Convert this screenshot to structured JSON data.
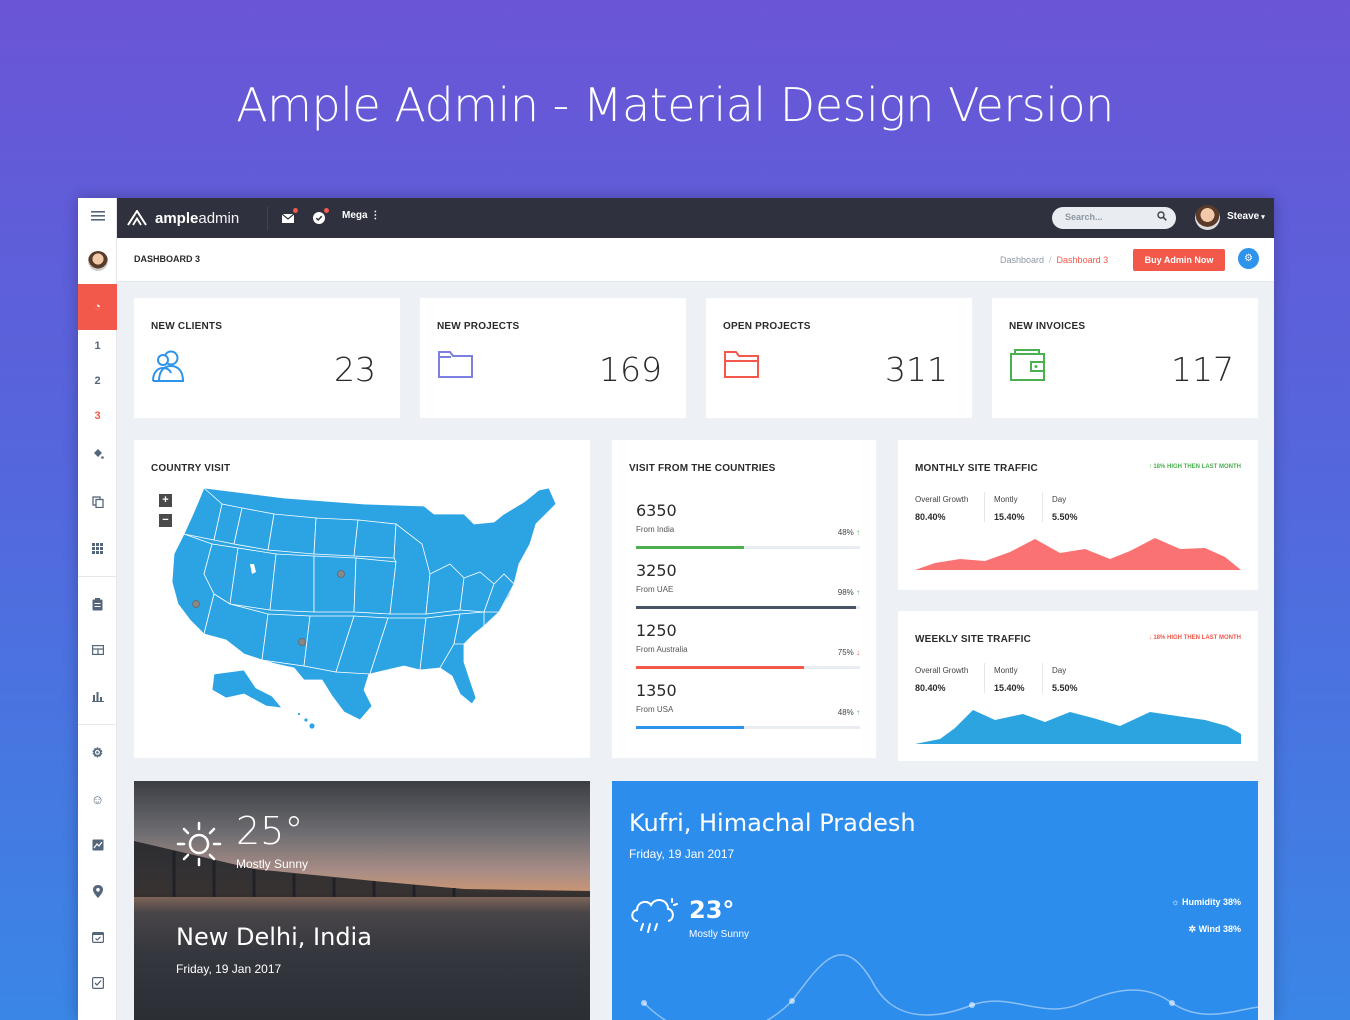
{
  "hero_title": "Ample Admin - Material Design Version",
  "app": {
    "logo_bold": "ample",
    "logo_light": "admin",
    "mega_label": "Mega",
    "search_placeholder": "Search...",
    "user_name": "Steave"
  },
  "sidebar": {
    "numbers": [
      "1",
      "2",
      "3"
    ],
    "active_number": "3"
  },
  "subheader": {
    "page_title": "DASHBOARD 3",
    "breadcrumb": [
      "Dashboard",
      "Dashboard 3"
    ],
    "buy_label": "Buy Admin Now"
  },
  "stats": [
    {
      "title": "NEW CLIENTS",
      "value": "23",
      "icon": "users-icon",
      "color": "#2e93ea"
    },
    {
      "title": "NEW PROJECTS",
      "value": "169",
      "icon": "folder-icon",
      "color": "#7c7ee0"
    },
    {
      "title": "OPEN PROJECTS",
      "value": "311",
      "icon": "folder-open-icon",
      "color": "#f2594b"
    },
    {
      "title": "NEW INVOICES",
      "value": "117",
      "icon": "wallet-icon",
      "color": "#4cb050"
    }
  ],
  "country_visit": {
    "title": "COUNTRY VISIT",
    "zoom_in": "+",
    "zoom_out": "−"
  },
  "visits": {
    "title": "VISIT FROM THE COUNTRIES",
    "rows": [
      {
        "value": "6350",
        "from": "From India",
        "pct": "48%",
        "fill": 0.48,
        "trend": "up",
        "color": "#4cb050"
      },
      {
        "value": "3250",
        "from": "From UAE",
        "pct": "98%",
        "fill": 0.98,
        "trend": "up",
        "color": "#485366"
      },
      {
        "value": "1250",
        "from": "From Australia",
        "pct": "75%",
        "fill": 0.75,
        "trend": "down",
        "color": "#f2594b"
      },
      {
        "value": "1350",
        "from": "From USA",
        "pct": "48%",
        "fill": 0.48,
        "trend": "up",
        "color": "#2e93ea"
      }
    ]
  },
  "monthly": {
    "title": "MONTHLY SITE TRAFFIC",
    "note": "18% HIGH THEN LAST MONTH",
    "note_color": "#4cb050",
    "labels": [
      "Overall Growth",
      "Montly",
      "Day"
    ],
    "values": [
      "80.40%",
      "15.40%",
      "5.50%"
    ],
    "color": "#fb7272"
  },
  "weekly": {
    "title": "WEEKLY SITE TRAFFIC",
    "note": "18% HIGH THEN LAST MONTH",
    "note_color": "#f2594b",
    "labels": [
      "Overall Growth",
      "Montly",
      "Day"
    ],
    "values": [
      "80.40%",
      "15.40%",
      "5.50%"
    ],
    "color": "#2ba4e0"
  },
  "weather1": {
    "temp": "25°",
    "condition": "Mostly Sunny",
    "city": "New Delhi, India",
    "date": "Friday, 19 Jan 2017"
  },
  "weather2": {
    "city": "Kufri, Himachal Pradesh",
    "date": "Friday, 19 Jan 2017",
    "temp": "23°",
    "condition": "Mostly Sunny",
    "humidity": "Humidity 38%",
    "wind": "Wind 38%"
  }
}
